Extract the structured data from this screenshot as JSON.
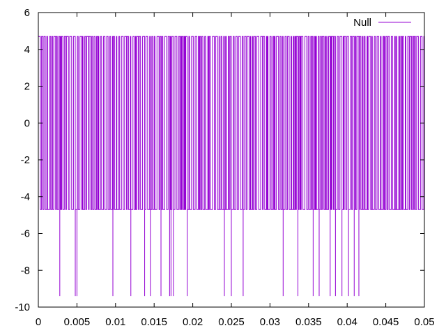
{
  "chart_data": {
    "type": "line",
    "title": "",
    "xlabel": "",
    "ylabel": "",
    "xlim": [
      0,
      0.05
    ],
    "ylim": [
      -10,
      6
    ],
    "x_ticks": [
      {
        "value": 0,
        "label": "0"
      },
      {
        "value": 0.005,
        "label": "0.005"
      },
      {
        "value": 0.01,
        "label": "0.01"
      },
      {
        "value": 0.015,
        "label": "0.015"
      },
      {
        "value": 0.02,
        "label": "0.02"
      },
      {
        "value": 0.025,
        "label": "0.025"
      },
      {
        "value": 0.03,
        "label": "0.03"
      },
      {
        "value": 0.035,
        "label": "0.035"
      },
      {
        "value": 0.04,
        "label": "0.04"
      },
      {
        "value": 0.045,
        "label": "0.045"
      },
      {
        "value": 0.05,
        "label": "0.05"
      }
    ],
    "y_ticks": [
      {
        "value": 6,
        "label": "6"
      },
      {
        "value": 4,
        "label": "4"
      },
      {
        "value": 2,
        "label": "2"
      },
      {
        "value": 0,
        "label": "0"
      },
      {
        "value": -2,
        "label": "-2"
      },
      {
        "value": -4,
        "label": "-4"
      },
      {
        "value": -6,
        "label": "-6"
      },
      {
        "value": -8,
        "label": "-8"
      },
      {
        "value": -10,
        "label": "-10"
      }
    ],
    "grid": false,
    "legend": {
      "position": "top-right"
    },
    "series": [
      {
        "name": "Null",
        "color": "#9400d3",
        "levels": {
          "high": 4.7,
          "low": -4.7,
          "spike": -9.4
        },
        "spike_x": [
          0.0027,
          0.0046,
          0.005,
          0.0097,
          0.012,
          0.0137,
          0.0145,
          0.0158,
          0.017,
          0.0173,
          0.0176,
          0.0193,
          0.0242,
          0.025,
          0.0266,
          0.0319,
          0.0335,
          0.0356,
          0.0365,
          0.0378,
          0.0387,
          0.0393,
          0.0403,
          0.0408,
          0.0415
        ],
        "x_end": 0.05,
        "y_end": 0
      }
    ]
  }
}
